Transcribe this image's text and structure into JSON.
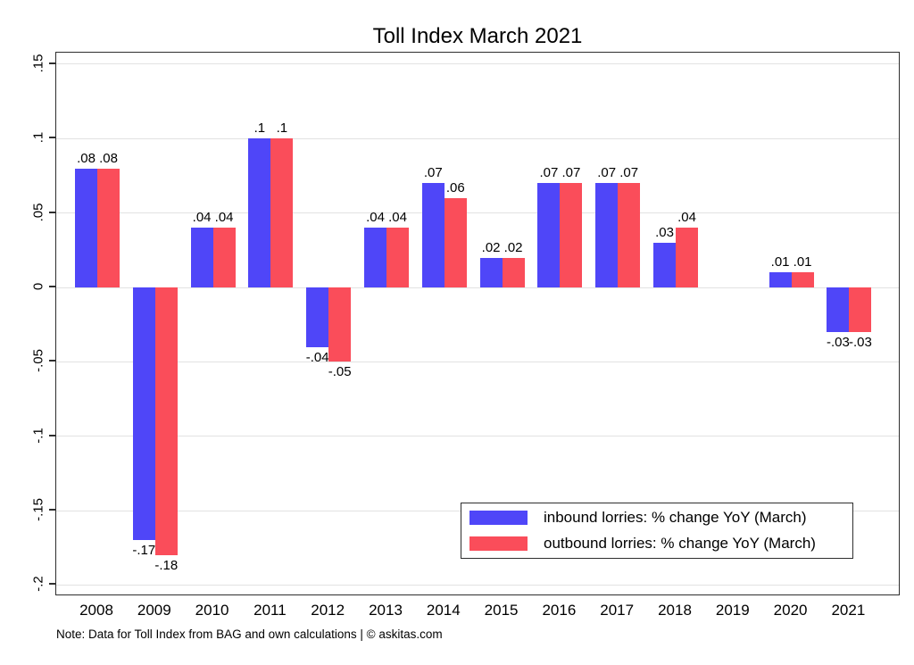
{
  "chart_data": {
    "type": "bar",
    "title": "Toll Index March 2021",
    "categories": [
      "2008",
      "2009",
      "2010",
      "2011",
      "2012",
      "2013",
      "2014",
      "2015",
      "2016",
      "2017",
      "2018",
      "2019",
      "2020",
      "2021"
    ],
    "series": [
      {
        "name": "inbound lorries: % change YoY (March)",
        "color": "#4f46f8",
        "values": [
          0.08,
          -0.17,
          0.04,
          0.1,
          -0.04,
          0.04,
          0.07,
          0.02,
          0.07,
          0.07,
          0.03,
          0,
          0.01,
          -0.03
        ],
        "labels": [
          ".08",
          "-.17",
          ".04",
          ".1",
          "-.04",
          ".04",
          ".07",
          ".02",
          ".07",
          ".07",
          ".03",
          "",
          ".01",
          "-.03"
        ]
      },
      {
        "name": "outbound lorries: % change YoY (March)",
        "color": "#fa4d5a",
        "values": [
          0.08,
          -0.18,
          0.04,
          0.1,
          -0.05,
          0.04,
          0.06,
          0.02,
          0.07,
          0.07,
          0.04,
          0,
          0.01,
          -0.03
        ],
        "labels": [
          ".08",
          "-.18",
          ".04",
          ".1",
          "-.05",
          ".04",
          ".06",
          ".02",
          ".07",
          ".07",
          ".04",
          "",
          ".01",
          "-.03"
        ]
      }
    ],
    "y_ticks": [
      ".15",
      ".1",
      ".05",
      "0",
      "-.05",
      "-.1",
      "-.15",
      "-.2"
    ],
    "ylim": [
      -0.208,
      0.158
    ],
    "grid": true,
    "grid_color": "#e2e2e2",
    "frame_color": "#2e2e2e",
    "legend_position": "inside-bottom-right"
  },
  "note": "Note: Data for Toll Index from BAG and own calculations | © askitas.com"
}
